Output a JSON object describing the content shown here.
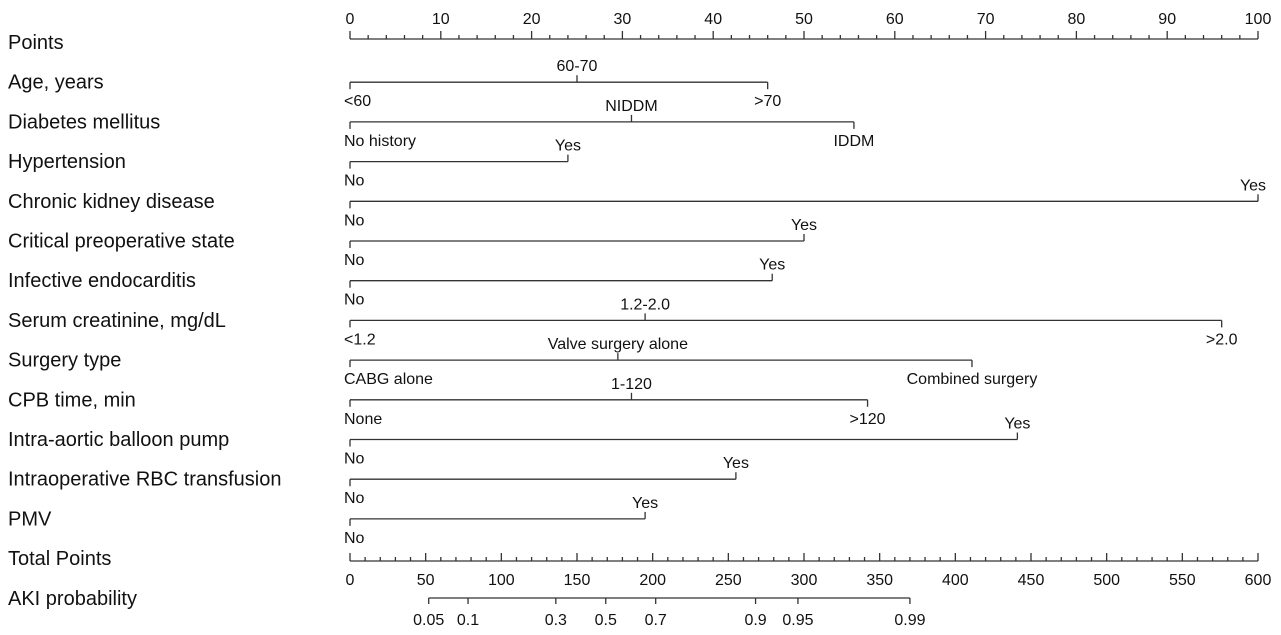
{
  "chart_data": {
    "type": "nomogram",
    "points_axis": {
      "label": "Points",
      "min": 0,
      "max": 100,
      "major_ticks": [
        "0",
        "10",
        "20",
        "30",
        "40",
        "50",
        "60",
        "70",
        "80",
        "90",
        "100"
      ],
      "minor_step": 2
    },
    "variables": [
      {
        "label": "Age, years",
        "levels": [
          {
            "name": "<60",
            "points": 0,
            "side": "below"
          },
          {
            "name": "60-70",
            "points": 25,
            "side": "above"
          },
          {
            "name": ">70",
            "points": 46,
            "side": "below"
          }
        ]
      },
      {
        "label": "Diabetes mellitus",
        "levels": [
          {
            "name": "No history",
            "points": 0,
            "side": "below"
          },
          {
            "name": "NIDDM",
            "points": 31,
            "side": "above"
          },
          {
            "name": "IDDM",
            "points": 55.5,
            "side": "below"
          }
        ]
      },
      {
        "label": "Hypertension",
        "levels": [
          {
            "name": "No",
            "points": 0,
            "side": "below"
          },
          {
            "name": "Yes",
            "points": 24,
            "side": "above"
          }
        ]
      },
      {
        "label": "Chronic kidney disease",
        "levels": [
          {
            "name": "No",
            "points": 0,
            "side": "below"
          },
          {
            "name": "Yes",
            "points": 100,
            "side": "above"
          }
        ]
      },
      {
        "label": "Critical preoperative state",
        "levels": [
          {
            "name": "No",
            "points": 0,
            "side": "below"
          },
          {
            "name": "Yes",
            "points": 50,
            "side": "above"
          }
        ]
      },
      {
        "label": "Infective endocarditis",
        "levels": [
          {
            "name": "No",
            "points": 0,
            "side": "below"
          },
          {
            "name": "Yes",
            "points": 46.5,
            "side": "above"
          }
        ]
      },
      {
        "label": "Serum creatinine, mg/dL",
        "levels": [
          {
            "name": "<1.2",
            "points": 0,
            "side": "below"
          },
          {
            "name": "1.2-2.0",
            "points": 32.5,
            "side": "above"
          },
          {
            "name": ">2.0",
            "points": 96,
            "side": "below"
          }
        ]
      },
      {
        "label": "Surgery type",
        "levels": [
          {
            "name": "CABG alone",
            "points": 0,
            "side": "below"
          },
          {
            "name": "Valve surgery alone",
            "points": 29.5,
            "side": "above"
          },
          {
            "name": "Combined surgery",
            "points": 68.5,
            "side": "below"
          }
        ]
      },
      {
        "label": "CPB time, min",
        "levels": [
          {
            "name": "None",
            "points": 0,
            "side": "below"
          },
          {
            "name": "1-120",
            "points": 31,
            "side": "above"
          },
          {
            "name": ">120",
            "points": 57,
            "side": "below"
          }
        ]
      },
      {
        "label": "Intra-aortic balloon pump",
        "levels": [
          {
            "name": "No",
            "points": 0,
            "side": "below"
          },
          {
            "name": "Yes",
            "points": 73.5,
            "side": "above"
          }
        ]
      },
      {
        "label": "Intraoperative RBC transfusion",
        "levels": [
          {
            "name": "No",
            "points": 0,
            "side": "below"
          },
          {
            "name": "Yes",
            "points": 42.5,
            "side": "above"
          }
        ]
      },
      {
        "label": "PMV",
        "levels": [
          {
            "name": "No",
            "points": 0,
            "side": "below"
          },
          {
            "name": "Yes",
            "points": 32.5,
            "side": "above"
          }
        ]
      }
    ],
    "total_points_axis": {
      "label": "Total Points",
      "min": 0,
      "max": 600,
      "major_ticks": [
        "0",
        "50",
        "100",
        "150",
        "200",
        "250",
        "300",
        "350",
        "400",
        "450",
        "500",
        "550",
        "600"
      ],
      "minor_step": 10
    },
    "probability_axis": {
      "label": "AKI probability",
      "ticks": [
        {
          "label": "0.05",
          "total_points": 52
        },
        {
          "label": "0.1",
          "total_points": 78
        },
        {
          "label": "0.3",
          "total_points": 136
        },
        {
          "label": "0.5",
          "total_points": 169
        },
        {
          "label": "0.7",
          "total_points": 202
        },
        {
          "label": "0.9",
          "total_points": 268
        },
        {
          "label": "0.95",
          "total_points": 296
        },
        {
          "label": "0.99",
          "total_points": 370
        }
      ]
    }
  }
}
